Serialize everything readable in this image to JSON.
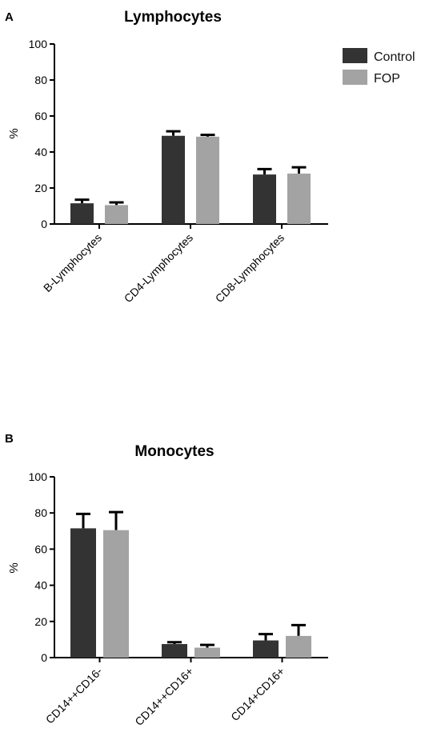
{
  "colors": {
    "control": "#333333",
    "fop": "#a3a3a3",
    "axis": "#000000"
  },
  "chart_data": [
    {
      "panel": "A",
      "type": "bar",
      "title": "Lymphocytes",
      "ylabel": "%",
      "xlabel": "",
      "ylim": [
        0,
        100
      ],
      "yticks": [
        0,
        20,
        40,
        60,
        80,
        100
      ],
      "categories": [
        "B-Lymphocytes",
        "CD4-Lymphocytes",
        "CD8-Lymphocytes"
      ],
      "series": [
        {
          "name": "Control",
          "values": [
            11.5,
            49,
            27.5
          ],
          "errors": [
            2,
            2.5,
            3
          ]
        },
        {
          "name": "FOP",
          "values": [
            10.5,
            48.5,
            28
          ],
          "errors": [
            1.5,
            1,
            3.5
          ]
        }
      ],
      "legend": {
        "placement": "top-right",
        "entries": [
          "Control",
          "FOP"
        ]
      }
    },
    {
      "panel": "B",
      "type": "bar",
      "title": "Monocytes",
      "ylabel": "%",
      "xlabel": "",
      "ylim": [
        0,
        100
      ],
      "yticks": [
        0,
        20,
        40,
        60,
        80,
        100
      ],
      "categories": [
        "CD14++CD16-",
        "CD14++CD16+",
        "CD14+CD16+"
      ],
      "series": [
        {
          "name": "Control",
          "values": [
            71.5,
            7.5,
            9.5
          ],
          "errors": [
            8,
            1,
            3.5
          ]
        },
        {
          "name": "FOP",
          "values": [
            70.5,
            5.5,
            12
          ],
          "errors": [
            10,
            1.5,
            6
          ]
        }
      ]
    }
  ]
}
